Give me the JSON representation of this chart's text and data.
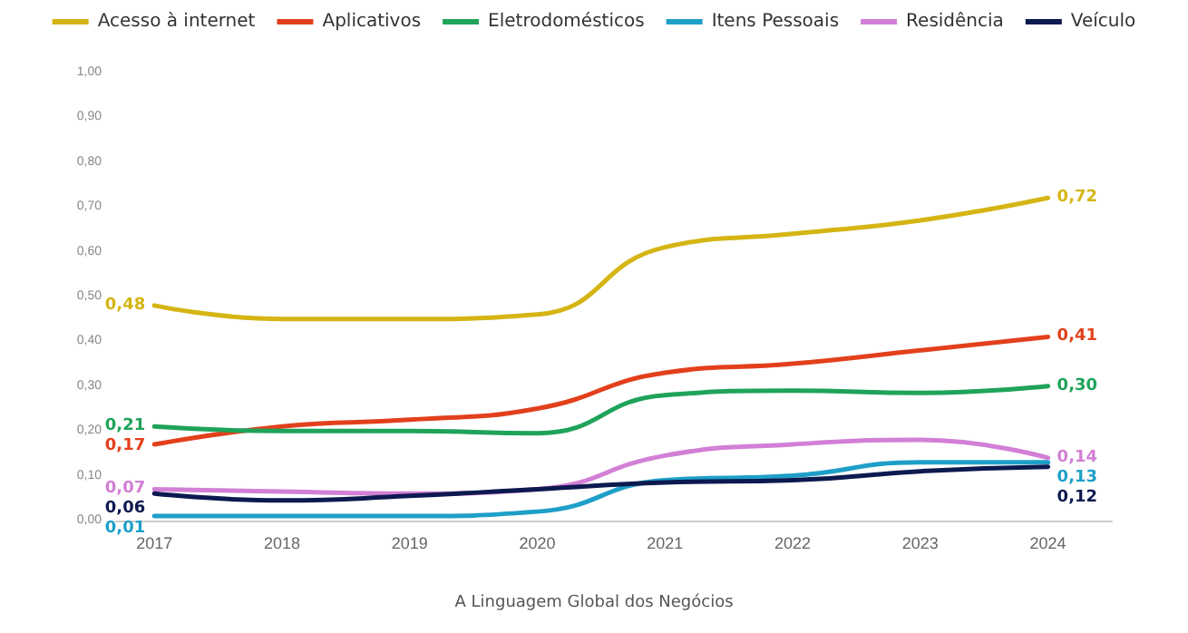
{
  "chart_data": {
    "type": "line",
    "x": [
      2017,
      2018,
      2019,
      2020,
      2021,
      2022,
      2023,
      2024
    ],
    "series": [
      {
        "name": "Acesso à internet",
        "color": "#d4b514",
        "values": [
          0.48,
          0.45,
          0.45,
          0.46,
          0.61,
          0.64,
          0.67,
          0.72
        ],
        "value_labels": [
          "0,48",
          null,
          null,
          null,
          null,
          null,
          null,
          "0,72"
        ]
      },
      {
        "name": "Aplicativos",
        "color": "#e2401c",
        "values": [
          0.17,
          0.21,
          0.225,
          0.25,
          0.33,
          0.35,
          0.38,
          0.41
        ],
        "value_labels": [
          "0,17",
          null,
          null,
          null,
          null,
          null,
          null,
          "0,41"
        ]
      },
      {
        "name": "Eletrodomésticos",
        "color": "#1fa35a",
        "values": [
          0.21,
          0.2,
          0.2,
          0.195,
          0.28,
          0.29,
          0.285,
          0.3
        ],
        "value_labels": [
          "0,21",
          null,
          null,
          null,
          null,
          null,
          null,
          "0,30"
        ]
      },
      {
        "name": "Itens Pessoais",
        "color": "#1e9fc8",
        "values": [
          0.01,
          0.01,
          0.01,
          0.02,
          0.09,
          0.1,
          0.13,
          0.13
        ],
        "value_labels": [
          "0,01",
          null,
          null,
          null,
          null,
          null,
          null,
          "0,13"
        ]
      },
      {
        "name": "Residência",
        "color": "#d27fd6",
        "values": [
          0.07,
          0.065,
          0.06,
          0.07,
          0.145,
          0.17,
          0.18,
          0.14
        ],
        "value_labels": [
          "0,07",
          null,
          null,
          null,
          null,
          null,
          null,
          "0,14"
        ]
      },
      {
        "name": "Veículo",
        "color": "#0d1a4f",
        "values": [
          0.06,
          0.045,
          0.055,
          0.07,
          0.085,
          0.09,
          0.11,
          0.12
        ],
        "value_labels": [
          "0,06",
          null,
          null,
          null,
          null,
          null,
          null,
          "0,12"
        ]
      }
    ],
    "xlim": [
      2016.7,
      2024.5
    ],
    "xticks": [
      2017,
      2018,
      2019,
      2020,
      2021,
      2022,
      2023,
      2024
    ],
    "ylim": [
      0,
      1
    ],
    "yticks": [
      {
        "value": 0,
        "label": "0,00"
      },
      {
        "value": 0.1,
        "label": "0,10"
      },
      {
        "value": 0.2,
        "label": "0,20"
      },
      {
        "value": 0.3,
        "label": "0,30"
      },
      {
        "value": 0.4,
        "label": "0,40"
      },
      {
        "value": 0.5,
        "label": "0,50"
      },
      {
        "value": 0.6,
        "label": "0,60"
      },
      {
        "value": 0.7,
        "label": "0,70"
      },
      {
        "value": 0.8,
        "label": "0,80"
      },
      {
        "value": 0.9,
        "label": "0,90"
      },
      {
        "value": 1,
        "label": "1,00"
      }
    ],
    "grid": false,
    "legend": "top",
    "marker": "none",
    "line_style": "solid",
    "annotations": [
      "A Linguagem Global dos Negócios"
    ]
  }
}
